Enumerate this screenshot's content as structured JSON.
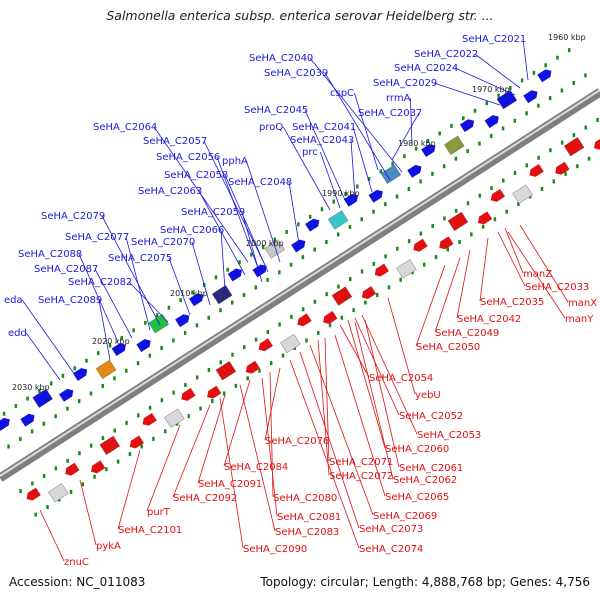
{
  "title": "Salmonella enterica subsp. enterica serovar Heidelberg str. ...",
  "footer": {
    "accession": "Accession: NC_011083",
    "summary": "Topology: circular; Length: 4,888,768 bp; Genes: 4,756"
  },
  "colors": {
    "forward_label": "#1a1ae0",
    "reverse_label": "#e01010",
    "backbone": "#7f7f7f",
    "tick": "#1a8a1a"
  },
  "scale_labels": [
    "1960 kbp",
    "1970 kbp",
    "1980 kbp",
    "1990 kbp",
    "2000 kbp",
    "2010 kbp",
    "2020 kbp",
    "2030 kbp"
  ],
  "forward_genes": [
    "SeHA_C2021",
    "SeHA_C2022",
    "SeHA_C2024",
    "SeHA_C2029",
    "rrmA",
    "SeHA_C2037",
    "cspC",
    "SeHA_C2040",
    "SeHA_C2039",
    "SeHA_C2045",
    "proQ",
    "SeHA_C2041",
    "SeHA_C2043",
    "prc",
    "SeHA_C2064",
    "SeHA_C2057",
    "SeHA_C2056",
    "pphA",
    "SeHA_C2058",
    "SeHA_C2048",
    "SeHA_C2063",
    "SeHA_C2059",
    "SeHA_C2079",
    "SeHA_C2066",
    "SeHA_C2077",
    "SeHA_C2070",
    "SeHA_C2088",
    "SeHA_C2075",
    "SeHA_C2087",
    "SeHA_C2082",
    "eda",
    "SeHA_C2089",
    "edd"
  ],
  "reverse_genes": [
    "manZ",
    "SeHA_C2033",
    "manX",
    "SeHA_C2035",
    "manY",
    "SeHA_C2042",
    "SeHA_C2049",
    "SeHA_C2050",
    "SeHA_C2054",
    "yebU",
    "SeHA_C2052",
    "SeHA_C2053",
    "SeHA_C2060",
    "SeHA_C2076",
    "SeHA_C2071",
    "SeHA_C2061",
    "SeHA_C2084",
    "SeHA_C2072",
    "SeHA_C2062",
    "SeHA_C2091",
    "SeHA_C2065",
    "SeHA_C2092",
    "SeHA_C2080",
    "purT",
    "SeHA_C2081",
    "SeHA_C2069",
    "SeHA_C2101",
    "SeHA_C2083",
    "SeHA_C2073",
    "pykA",
    "SeHA_C2090",
    "SeHA_C2074",
    "znuC"
  ]
}
